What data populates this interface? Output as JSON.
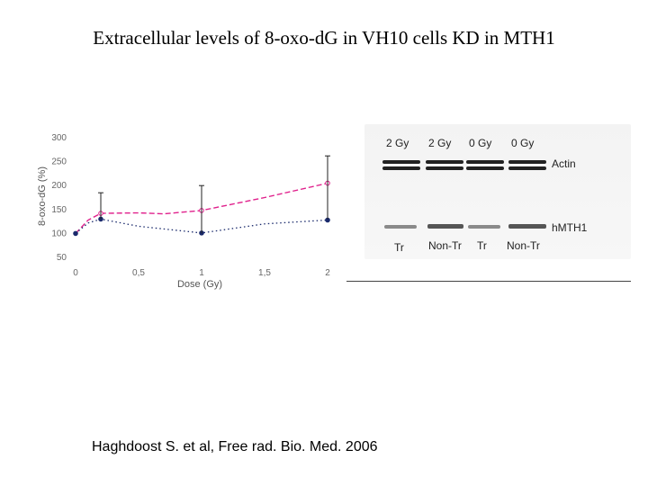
{
  "title": "Extracellular levels of  8-oxo-dG in VH10 cells KD in MTH1",
  "citation": "Haghdoost S. et al, Free rad. Bio. Med. 2006",
  "chart_data": {
    "type": "line",
    "xlabel": "Dose (Gy)",
    "ylabel": "8-oxo-dG (%)",
    "xlim": [
      0,
      2
    ],
    "ylim": [
      50,
      300
    ],
    "x_ticks": [
      "0",
      "0,5",
      "1",
      "1,5",
      "2"
    ],
    "x_tick_values": [
      0,
      0.5,
      1,
      1.5,
      2
    ],
    "y_ticks": [
      300,
      250,
      200,
      150,
      100,
      50
    ],
    "grid": false,
    "series": [
      {
        "style": "dashed",
        "color": "#e0208c",
        "x": [
          0,
          0.1,
          0.2,
          0.5,
          0.7,
          1,
          1.5,
          2
        ],
        "values": [
          100,
          128,
          142,
          143,
          141,
          148,
          175,
          205
        ],
        "markers_x": [
          0.2,
          1,
          2
        ]
      },
      {
        "style": "dotted",
        "color": "#1a2a6c",
        "x": [
          0,
          0.1,
          0.2,
          0.5,
          1,
          1.5,
          2
        ],
        "values": [
          100,
          122,
          130,
          115,
          101,
          120,
          128
        ],
        "markers_x": [
          0,
          0.2,
          1,
          2
        ]
      }
    ],
    "error_bars": [
      {
        "x": 0.2,
        "upper": 185,
        "lower": 130
      },
      {
        "x": 1,
        "upper": 200,
        "lower": 100
      },
      {
        "x": 2,
        "upper": 262,
        "lower": 130
      }
    ]
  },
  "blot": {
    "top_labels": [
      "2 Gy",
      "2 Gy",
      "0 Gy",
      "0 Gy"
    ],
    "bottom_labels": [
      "Tr",
      "Non-Tr",
      "Tr",
      "Non-Tr"
    ],
    "row_labels": [
      "Actin",
      "hMTH1"
    ]
  }
}
